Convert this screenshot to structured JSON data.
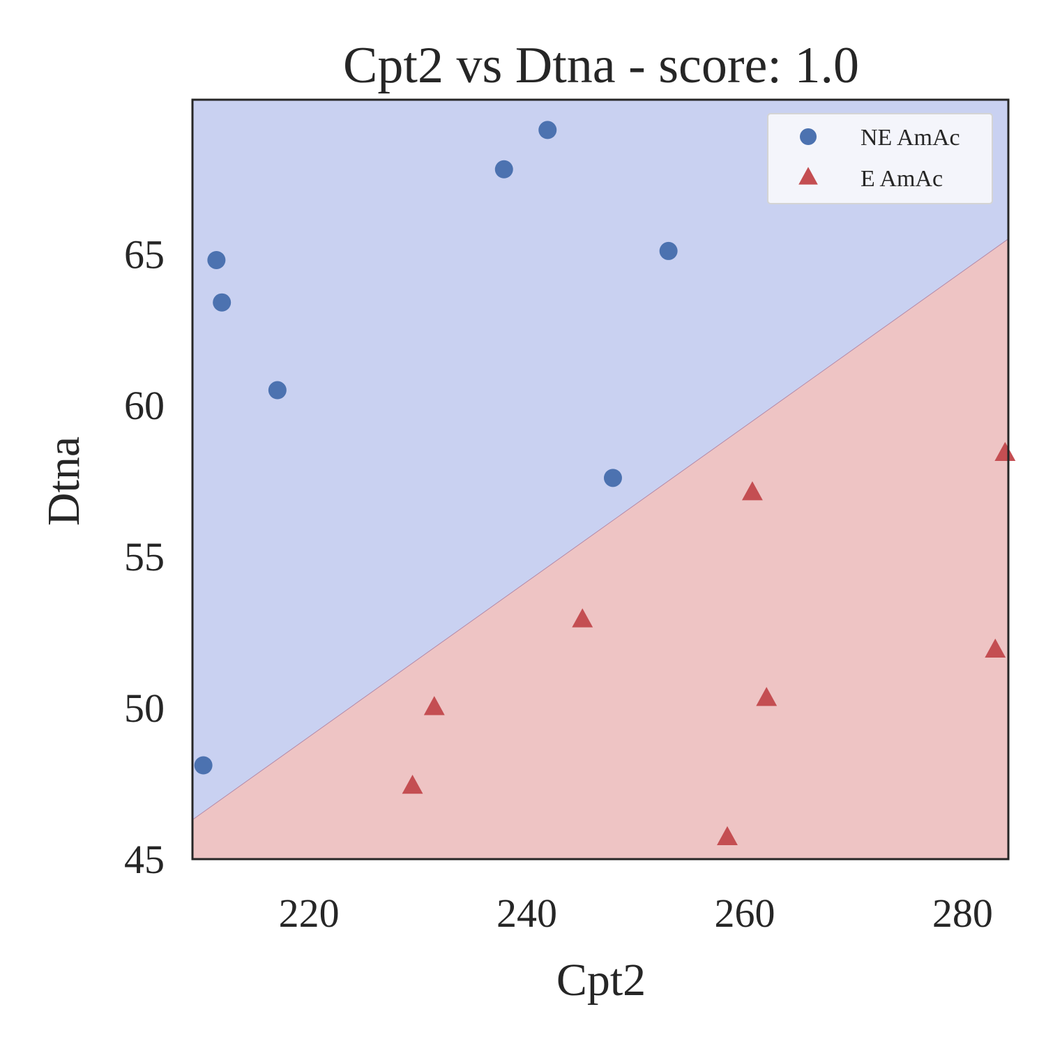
{
  "chart_data": {
    "type": "scatter",
    "title": "Cpt2 vs Dtna - score: 1.0",
    "xlabel": "Cpt2",
    "ylabel": "Dtna",
    "xlim": [
      209.3,
      284.2
    ],
    "ylim": [
      45.0,
      70.1
    ],
    "xticks": [
      220,
      240,
      260,
      280
    ],
    "yticks": [
      45,
      50,
      55,
      60,
      65
    ],
    "grid": false,
    "legend_position": "top-right",
    "decision_boundary": {
      "x": [
        209.3,
        284.2
      ],
      "y": [
        46.3,
        65.5
      ]
    },
    "regions": [
      {
        "label": "NE AmAc",
        "side": "above",
        "color": "#c9d1f1"
      },
      {
        "label": "E AmAc",
        "side": "below",
        "color": "#eec4c4"
      }
    ],
    "series": [
      {
        "name": "NE AmAc",
        "marker": "circle",
        "color": "#4c72b0",
        "points": [
          {
            "x": 210.3,
            "y": 48.1
          },
          {
            "x": 211.5,
            "y": 64.8
          },
          {
            "x": 212.0,
            "y": 63.4
          },
          {
            "x": 217.1,
            "y": 60.5
          },
          {
            "x": 237.9,
            "y": 67.8
          },
          {
            "x": 241.9,
            "y": 69.1
          },
          {
            "x": 247.9,
            "y": 57.6
          },
          {
            "x": 253.0,
            "y": 65.1
          }
        ]
      },
      {
        "name": "E AmAc",
        "marker": "triangle",
        "color": "#c44e52",
        "points": [
          {
            "x": 229.5,
            "y": 47.4
          },
          {
            "x": 231.5,
            "y": 50.0
          },
          {
            "x": 245.1,
            "y": 52.9
          },
          {
            "x": 258.4,
            "y": 45.7
          },
          {
            "x": 260.7,
            "y": 57.1
          },
          {
            "x": 262.0,
            "y": 50.3
          },
          {
            "x": 283.0,
            "y": 51.9
          },
          {
            "x": 283.9,
            "y": 58.4
          }
        ]
      }
    ]
  }
}
